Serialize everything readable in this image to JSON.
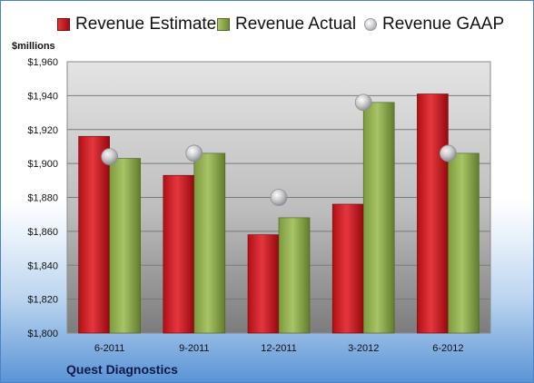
{
  "units_label": "$millions",
  "company": "Quest Diagnostics",
  "colors": {
    "estimate": "#c8161d",
    "actual": "#8aa845",
    "gaap": "#b8b8bc"
  },
  "chart_data": {
    "type": "bar",
    "categories": [
      "6-2011",
      "9-2011",
      "12-2011",
      "3-2012",
      "6-2012"
    ],
    "series": [
      {
        "name": "Revenue Estimate",
        "kind": "bar",
        "values": [
          1916,
          1893,
          1858,
          1876,
          1941
        ]
      },
      {
        "name": "Revenue Actual",
        "kind": "bar",
        "values": [
          1903,
          1906,
          1868,
          1936,
          1906
        ]
      },
      {
        "name": "Revenue GAAP",
        "kind": "marker",
        "values": [
          1904,
          1906,
          1880,
          1936,
          1906
        ]
      }
    ],
    "ylabel": "$millions",
    "ylim": [
      1800,
      1960
    ],
    "ytick_labels": [
      "$1,800",
      "$1,820",
      "$1,840",
      "$1,860",
      "$1,880",
      "$1,900",
      "$1,920",
      "$1,940",
      "$1,960"
    ],
    "yticks": [
      1800,
      1820,
      1840,
      1860,
      1880,
      1900,
      1920,
      1940,
      1960
    ],
    "grid": true,
    "legend_position": "top"
  }
}
